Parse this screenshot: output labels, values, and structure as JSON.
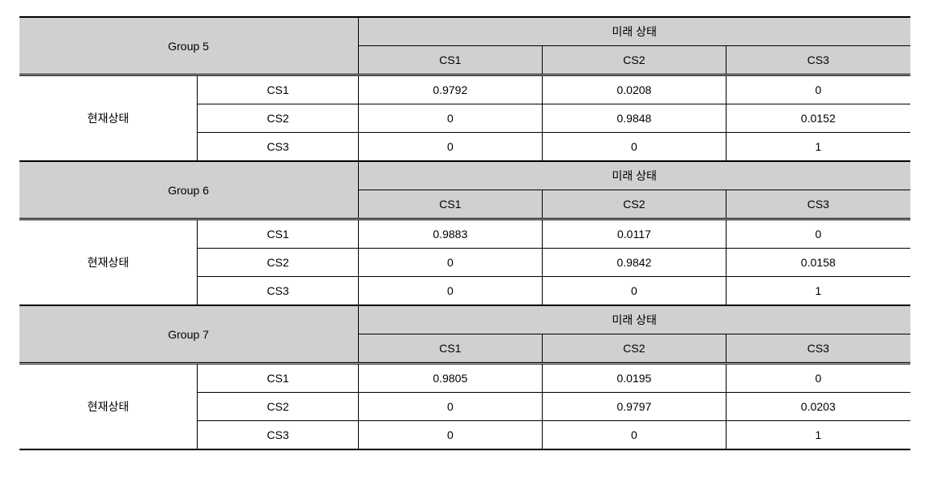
{
  "labels": {
    "future_state": "미래 상태",
    "current_state": "현재상태",
    "cs1": "CS1",
    "cs2": "CS2",
    "cs3": "CS3"
  },
  "groups": [
    {
      "name": "Group 5",
      "rows": [
        {
          "label": "CS1",
          "values": [
            "0.9792",
            "0.0208",
            "0"
          ]
        },
        {
          "label": "CS2",
          "values": [
            "0",
            "0.9848",
            "0.0152"
          ]
        },
        {
          "label": "CS3",
          "values": [
            "0",
            "0",
            "1"
          ]
        }
      ]
    },
    {
      "name": "Group 6",
      "rows": [
        {
          "label": "CS1",
          "values": [
            "0.9883",
            "0.0117",
            "0"
          ]
        },
        {
          "label": "CS2",
          "values": [
            "0",
            "0.9842",
            "0.0158"
          ]
        },
        {
          "label": "CS3",
          "values": [
            "0",
            "0",
            "1"
          ]
        }
      ]
    },
    {
      "name": "Group 7",
      "rows": [
        {
          "label": "CS1",
          "values": [
            "0.9805",
            "0.0195",
            "0"
          ]
        },
        {
          "label": "CS2",
          "values": [
            "0",
            "0.9797",
            "0.0203"
          ]
        },
        {
          "label": "CS3",
          "values": [
            "0",
            "0",
            "1"
          ]
        }
      ]
    }
  ],
  "style": {
    "header_bg": "#d0d0d0",
    "border_color": "#000000",
    "font_size": 14
  }
}
